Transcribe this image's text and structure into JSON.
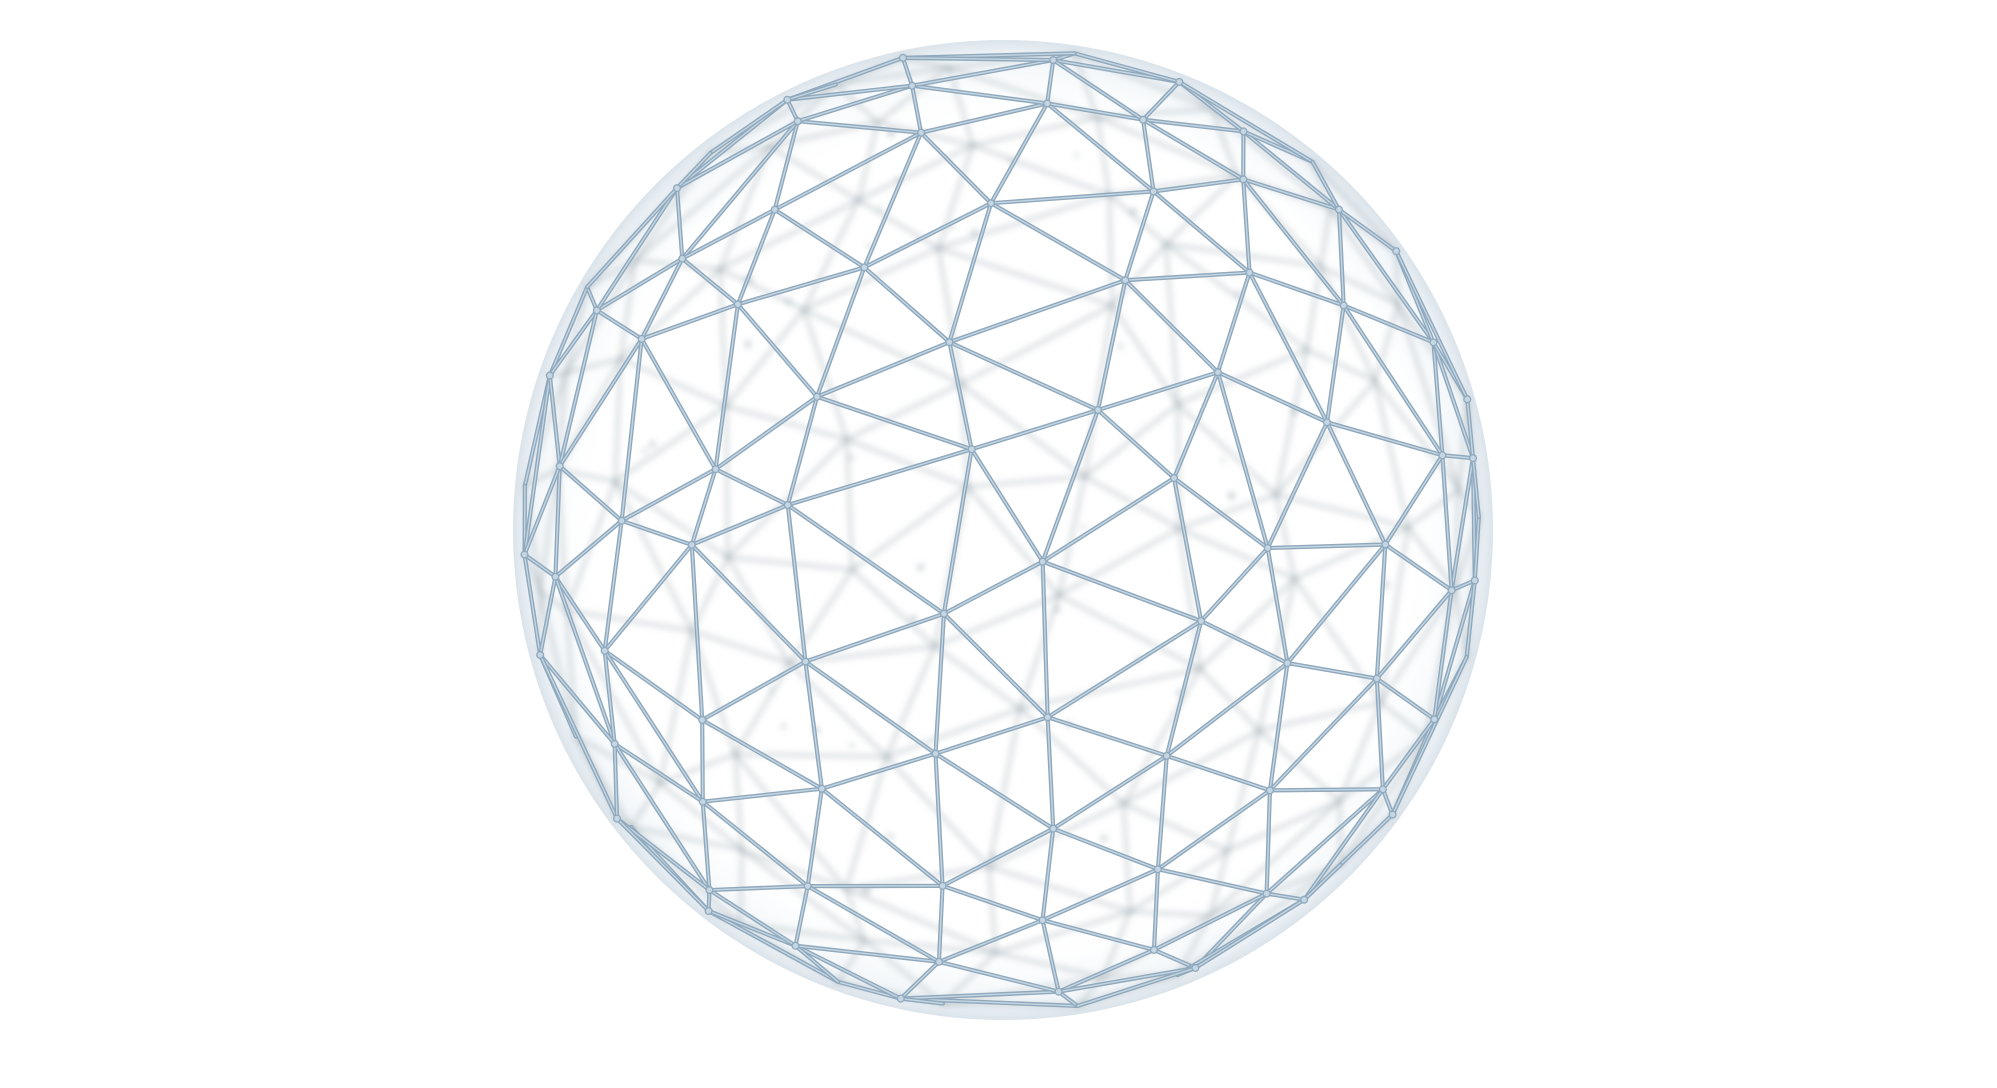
{
  "image": {
    "subject": "wireframe-geodesic-sphere",
    "background_color": "#ffffff",
    "mesh_color": "#8fa8bc",
    "mesh_highlight_color": "#c4d6e3",
    "interior_color": "#9aa6ae"
  }
}
